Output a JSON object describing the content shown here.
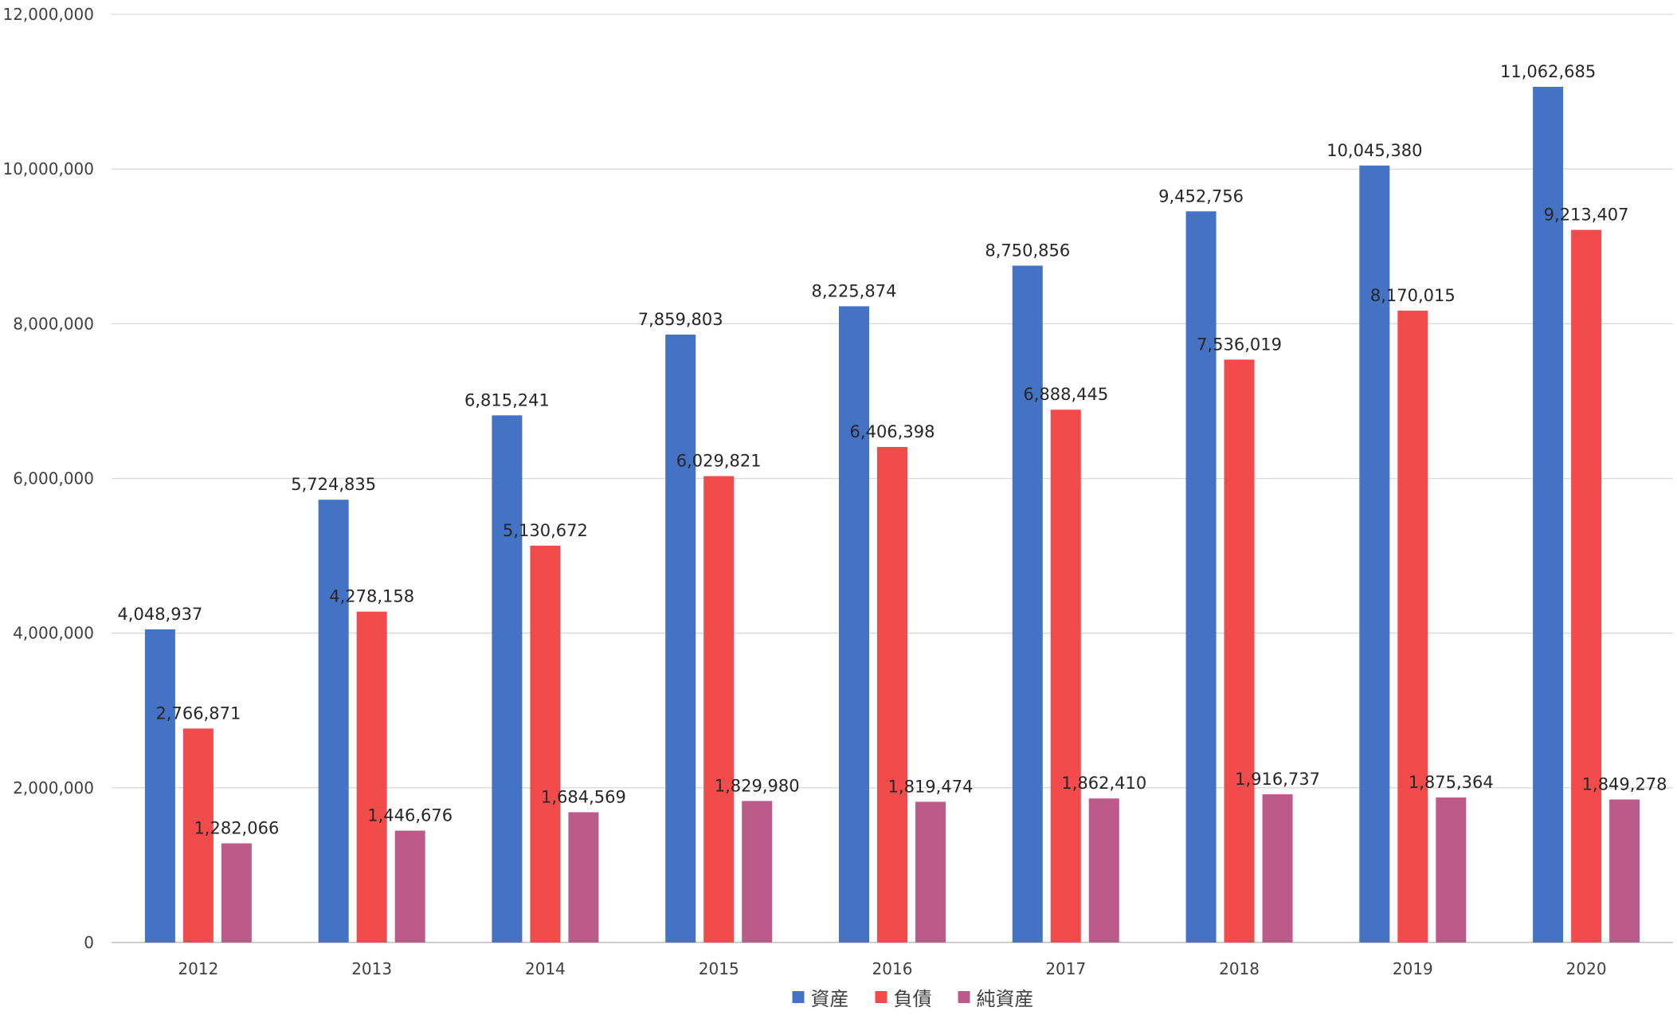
{
  "chart_data": {
    "type": "bar",
    "title": "",
    "xlabel": "",
    "ylabel": "",
    "categories": [
      "2012",
      "2013",
      "2014",
      "2015",
      "2016",
      "2017",
      "2018",
      "2019",
      "2020"
    ],
    "series": [
      {
        "name": "資産",
        "color": "#4472C4",
        "values": [
          4048937,
          5724835,
          6815241,
          7859803,
          8225874,
          8750856,
          9452756,
          10045380,
          11062685
        ],
        "labels": [
          "4,048,937",
          "5,724,835",
          "6,815,241",
          "7,859,803",
          "8,225,874",
          "8,750,856",
          "9,452,756",
          "10,045,380",
          "11,062,685"
        ]
      },
      {
        "name": "負債",
        "color": "#F24B4B",
        "values": [
          2766871,
          4278158,
          5130672,
          6029821,
          6406398,
          6888445,
          7536019,
          8170015,
          9213407
        ],
        "labels": [
          "2,766,871",
          "4,278,158",
          "5,130,672",
          "6,029,821",
          "6,406,398",
          "6,888,445",
          "7,536,019",
          "8,170,015",
          "9,213,407"
        ]
      },
      {
        "name": "純資産",
        "color": "#BC5B8A",
        "values": [
          1282066,
          1446676,
          1684569,
          1829980,
          1819474,
          1862410,
          1916737,
          1875364,
          1849278
        ],
        "labels": [
          "1,282,066",
          "1,446,676",
          "1,684,569",
          "1,829,980",
          "1,819,474",
          "1,862,410",
          "1,916,737",
          "1,875,364",
          "1,849,278"
        ]
      }
    ],
    "ylim": [
      0,
      12000000
    ],
    "yticks": [
      0,
      2000000,
      4000000,
      6000000,
      8000000,
      10000000,
      12000000
    ],
    "ytick_labels": [
      "0",
      "2,000,000",
      "4,000,000",
      "6,000,000",
      "8,000,000",
      "10,000,000",
      "12,000,000"
    ],
    "grid": true,
    "legend_position": "bottom-center",
    "data_labels": true
  }
}
